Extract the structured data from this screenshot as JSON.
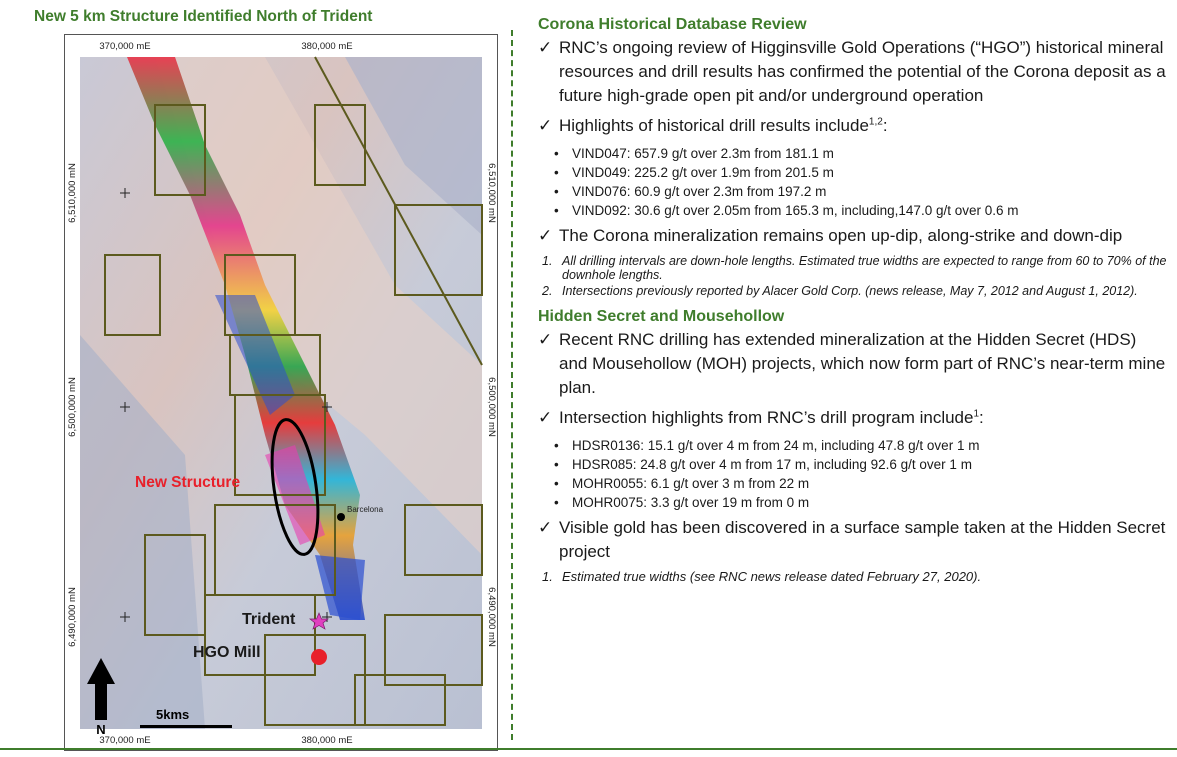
{
  "map": {
    "title": "New 5 km Structure Identified North of Trident",
    "top_easting_1": "370,000 mE",
    "top_easting_2": "380,000 mE",
    "bottom_easting_1": "370,000 mE",
    "bottom_easting_2": "380,000 mE",
    "northing_left_1": "6,510,000 mN",
    "northing_left_2": "6,500,000 mN",
    "northing_left_3": "6,490,000 mN",
    "northing_right_1": "6,510,000 mN",
    "northing_right_2": "6,500,000 mN",
    "northing_right_3": "6,490,000 mN",
    "new_structure_label": "New Structure",
    "barcelona_label": "Barcelona",
    "trident_label": "Trident",
    "hgo_mill_label": "HGO Mill",
    "north_label": "N",
    "scale_label": "5kms",
    "colors": {
      "title": "#3f7d2c",
      "new_structure": "#e8202a",
      "mill_dot": "#e8202a",
      "trident_star": "#e040c0"
    }
  },
  "corona": {
    "heading": "Corona Historical Database Review",
    "bullet1": "RNC’s ongoing review of Higginsville Gold Operations (“HGO”) historical mineral resources and drill results has confirmed the potential of the Corona deposit as a future high-grade open pit and/or underground operation",
    "bullet2": "Highlights of historical drill results include",
    "bullet2_sup": "1,2",
    "bullet2_end": ":",
    "highlights": [
      "VIND047:  657.9 g/t over 2.3m from 181.1 m",
      "VIND049:  225.2 g/t over 1.9m from 201.5 m",
      "VIND076:  60.9 g/t over 2.3m from 197.2 m",
      "VIND092: 30.6 g/t over 2.05m from 165.3 m, including,147.0 g/t over 0.6 m"
    ],
    "bullet3": "The Corona mineralization remains open up-dip, along-strike and down-dip",
    "note1_num": "1.",
    "note1": "All drilling intervals are down-hole lengths. Estimated true widths are expected to range from 60 to 70% of the downhole lengths.",
    "note2_num": "2.",
    "note2": "Intersections previously reported by Alacer Gold Corp. (news release, May 7, 2012 and August 1, 2012)."
  },
  "hidden": {
    "heading": "Hidden Secret and Mousehollow",
    "bullet1": "Recent RNC drilling has extended mineralization at the Hidden Secret (HDS) and Mousehollow (MOH) projects, which now form part of RNC’s near-term mine plan.",
    "bullet2": "Intersection highlights from RNC’s drill program include",
    "bullet2_sup": "1",
    "bullet2_end": ":",
    "highlights": [
      "HDSR0136: 15.1 g/t over 4 m from 24 m, including 47.8 g/t over 1 m",
      "HDSR085: 24.8 g/t over 4 m from 17 m, including 92.6 g/t over 1 m",
      "MOHR0055:  6.1 g/t over 3 m from 22 m",
      "MOHR0075:  3.3 g/t over 19 m from 0 m"
    ],
    "bullet3": "Visible gold has been discovered in a surface sample taken at the Hidden Secret project",
    "note1_num": "1.",
    "note1": "Estimated true widths (see RNC news release dated February 27, 2020)."
  },
  "check_symbol": "✓",
  "bullet_symbol": "•"
}
